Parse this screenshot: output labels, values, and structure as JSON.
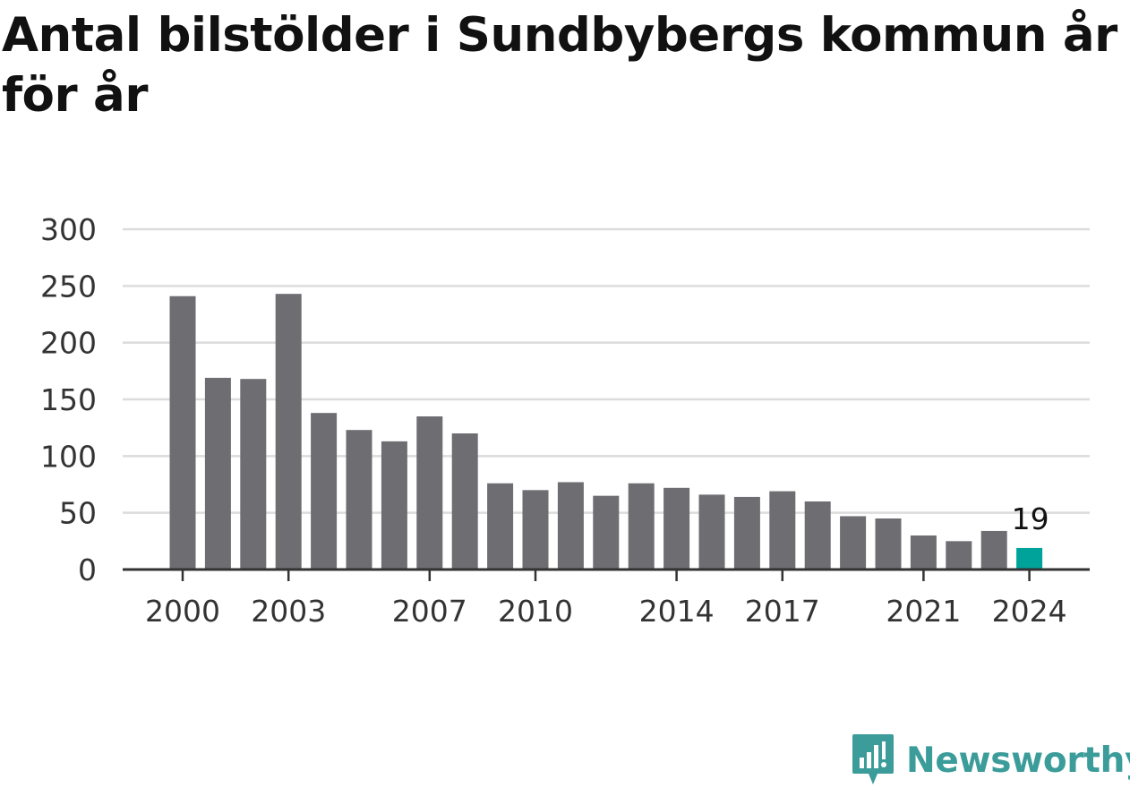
{
  "title": "Antal bilstölder i Sundbybergs kommun år för år",
  "brand": {
    "name": "Newsworthy",
    "logo_icon": "newsworthy-logo-icon",
    "color": "#3b9c9a"
  },
  "colors": {
    "bar": "#6e6d72",
    "highlight": "#00a39a",
    "grid": "#dcdcdc",
    "axis": "#333333",
    "text": "#333333"
  },
  "chart_data": {
    "type": "bar",
    "title": "Antal bilstölder i Sundbybergs kommun år för år",
    "xlabel": "",
    "ylabel": "",
    "categories": [
      2000,
      2001,
      2002,
      2003,
      2004,
      2005,
      2006,
      2007,
      2008,
      2009,
      2010,
      2011,
      2012,
      2013,
      2014,
      2015,
      2016,
      2017,
      2018,
      2019,
      2020,
      2021,
      2022,
      2023,
      2024
    ],
    "values": [
      241,
      169,
      168,
      243,
      138,
      123,
      113,
      135,
      120,
      76,
      70,
      77,
      65,
      76,
      72,
      66,
      64,
      69,
      60,
      47,
      45,
      30,
      25,
      34,
      19
    ],
    "x_tick_labels": [
      "2000",
      "2003",
      "2007",
      "2010",
      "2014",
      "2017",
      "2021",
      "2024"
    ],
    "y_ticks": [
      0,
      50,
      100,
      150,
      200,
      250,
      300
    ],
    "ylim": [
      0,
      300
    ],
    "grid": true,
    "highlight": {
      "category": 2024,
      "label": "19"
    }
  }
}
